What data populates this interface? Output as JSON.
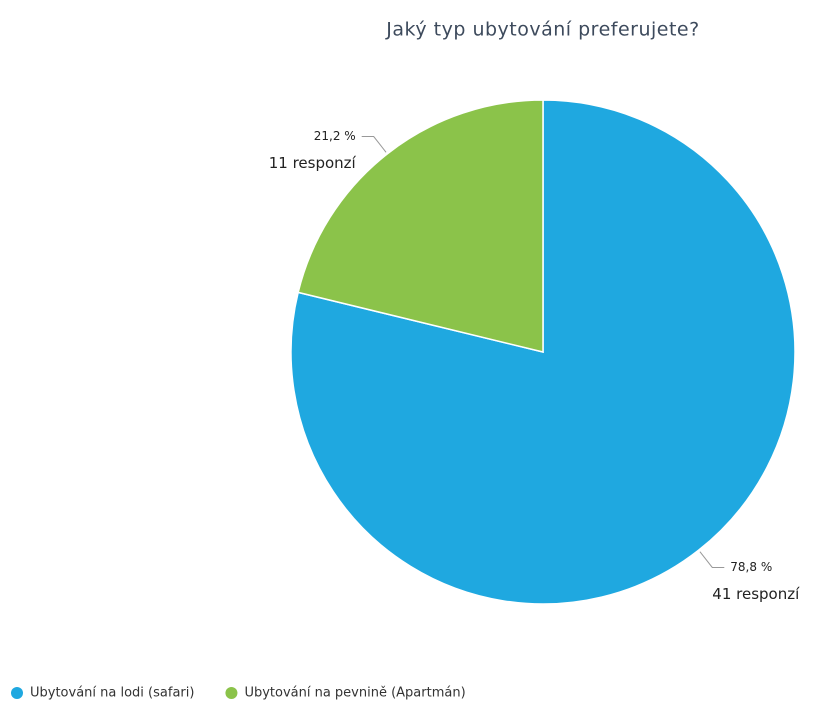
{
  "chart_data": {
    "type": "pie",
    "title": "Jaký typ ubytování preferujete?",
    "categories": [
      "Ubytování na lodi (safari)",
      "Ubytování na pevnině (Apartmán)"
    ],
    "values": [
      78.8,
      21.2
    ],
    "value_labels": [
      "78,8 %",
      "21,2 %"
    ],
    "counts": [
      41,
      11
    ],
    "count_labels": [
      "41 responzí",
      "11 responzí"
    ],
    "colors": [
      "#1fa8e0",
      "#8bc34a"
    ],
    "legend": "bottom"
  }
}
